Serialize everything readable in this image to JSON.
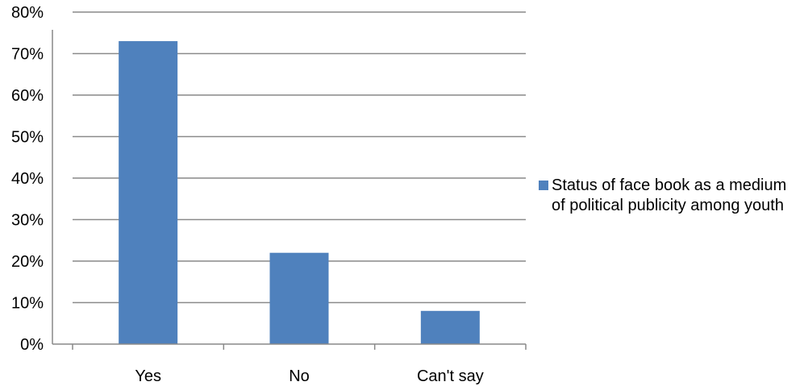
{
  "chart_data": {
    "type": "bar",
    "categories": [
      "Yes",
      "No",
      "Can't say"
    ],
    "series": [
      {
        "name": "Status of face book as a medium of political publicity among youth",
        "values": [
          73,
          22,
          8
        ],
        "color": "#4f81bd"
      }
    ],
    "ylim": [
      0,
      80
    ],
    "yticks": [
      "0%",
      "10%",
      "20%",
      "30%",
      "40%",
      "50%",
      "60%",
      "70%",
      "80%"
    ],
    "grid": true,
    "legend_position": "right"
  }
}
